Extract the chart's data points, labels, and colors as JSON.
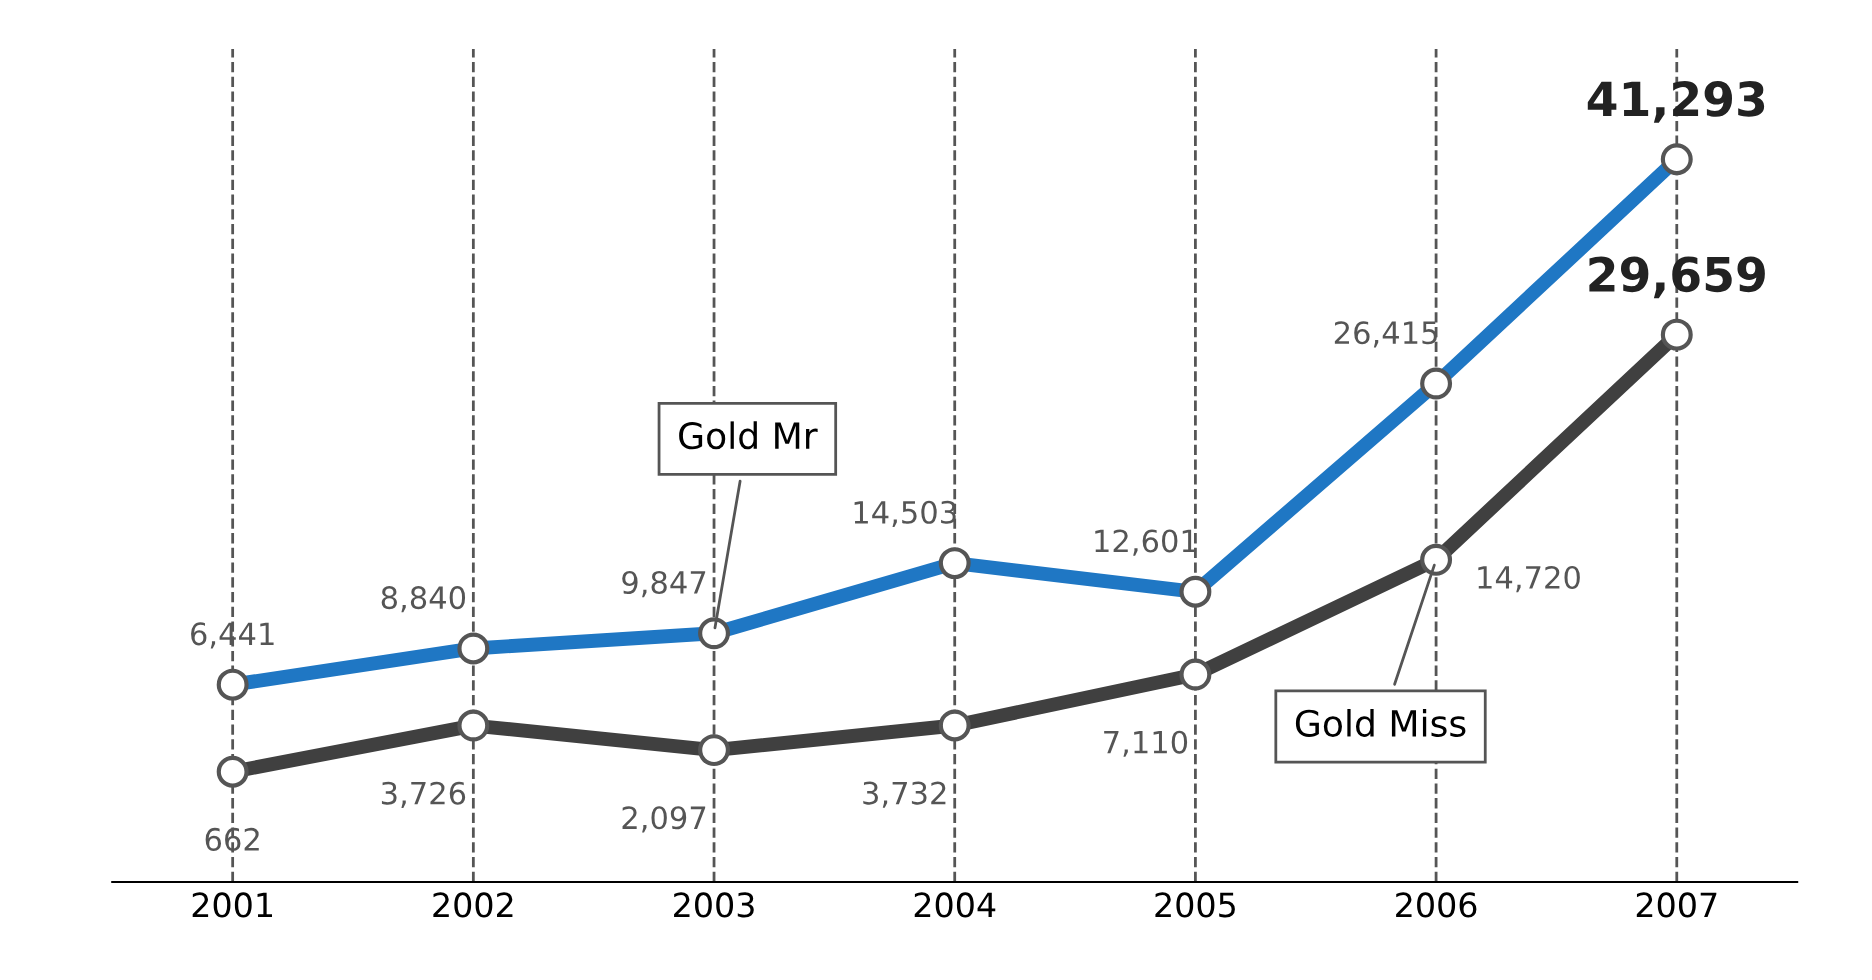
{
  "chart_data": {
    "type": "line",
    "categories": [
      "2001",
      "2002",
      "2003",
      "2004",
      "2005",
      "2006",
      "2007"
    ],
    "series": [
      {
        "name": "Gold Mr",
        "color": "#1f77c4",
        "values": [
          6441,
          8840,
          9847,
          14503,
          12601,
          26415,
          41293
        ],
        "value_labels": [
          "6,441",
          "8,840",
          "9,847",
          "14,503",
          "12,601",
          "26,415",
          "41,293"
        ]
      },
      {
        "name": "Gold Miss",
        "color": "#404040",
        "values": [
          662,
          3726,
          2097,
          3732,
          7110,
          14720,
          29659
        ],
        "value_labels": [
          "662",
          "3,726",
          "2,097",
          "3,732",
          "7,110",
          "14,720",
          "29,659"
        ]
      }
    ],
    "marker": "circle",
    "line_style": "solid",
    "grid": "x"
  }
}
